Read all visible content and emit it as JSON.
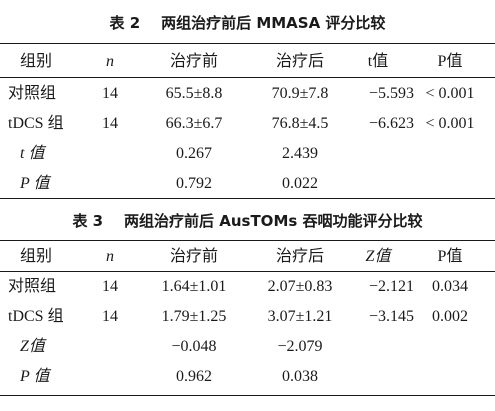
{
  "table2": {
    "caption_label": "表 2",
    "caption_text": "两组治疗前后 MMASA 评分比较",
    "headers": [
      "组别",
      "n",
      "治疗前",
      "治疗后",
      "t值",
      "P值"
    ],
    "rows": [
      [
        "对照组",
        "14",
        "65.5±8.8",
        "70.9±7.8",
        "−5.593",
        "< 0.001"
      ],
      [
        "tDCS 组",
        "14",
        "66.3±6.7",
        "76.8±4.5",
        "−6.623",
        "< 0.001"
      ]
    ],
    "stats": [
      {
        "label": "t 值",
        "before": "0.267",
        "after": "2.439"
      },
      {
        "label": "P 值",
        "before": "0.792",
        "after": "0.022"
      }
    ]
  },
  "table3": {
    "caption_label": "表 3",
    "caption_text": "两组治疗前后 AusTOMs 吞咽功能评分比较",
    "headers": [
      "组别",
      "n",
      "治疗前",
      "治疗后",
      "Z值",
      "P值"
    ],
    "rows": [
      [
        "对照组",
        "14",
        "1.64±1.01",
        "2.07±0.83",
        "−2.121",
        "0.034"
      ],
      [
        "tDCS 组",
        "14",
        "1.79±1.25",
        "3.07±1.21",
        "−3.145",
        "0.002"
      ]
    ],
    "stats": [
      {
        "label": "Z值",
        "before": "−0.048",
        "after": "−2.079"
      },
      {
        "label": "P 值",
        "before": "0.962",
        "after": "0.038"
      }
    ]
  }
}
